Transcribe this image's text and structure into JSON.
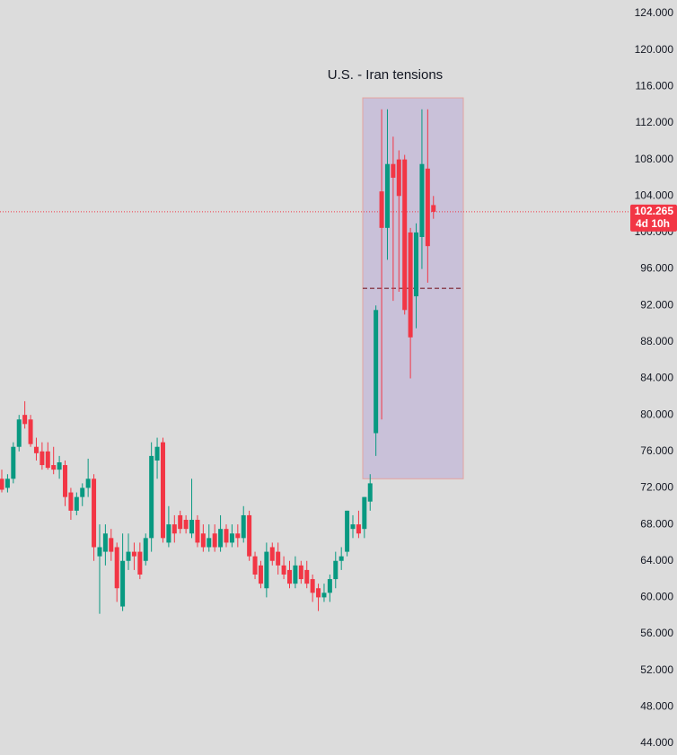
{
  "chart_data": {
    "type": "candlestick",
    "annotation": "U.S. - Iran tensions",
    "open": [
      73,
      72,
      73,
      76.5,
      80,
      79.5,
      76.5,
      76,
      76,
      74.5,
      74,
      74.5,
      71.5,
      69.5,
      71,
      72,
      73,
      64.5,
      65,
      66.5,
      65.5,
      59,
      64,
      65,
      65,
      64,
      66.5,
      75,
      77,
      66,
      68,
      69,
      68.5,
      67,
      68.5,
      67,
      65.5,
      67,
      65.5,
      67.5,
      66,
      67,
      66.5,
      69,
      64.5,
      63.5,
      61,
      65.5,
      65,
      63.5,
      63,
      61.5,
      63.5,
      63,
      62,
      61,
      60,
      60.5,
      62,
      64,
      65,
      67.5,
      68,
      67.5,
      70.5,
      78,
      104.5,
      100.5,
      107.5,
      108,
      108,
      100,
      93,
      99.5,
      107,
      103
    ],
    "high": [
      74,
      73.5,
      77,
      80,
      81.5,
      80,
      77.5,
      77,
      77,
      76.5,
      75.5,
      75,
      72,
      71.5,
      72.5,
      75.2,
      73.5,
      68,
      68,
      67.5,
      66,
      67,
      67,
      66,
      66,
      67,
      77,
      77.5,
      77.5,
      70,
      69,
      69.5,
      69,
      73,
      69,
      68,
      68,
      68,
      69,
      68,
      68,
      68,
      70,
      69.5,
      65,
      64,
      66,
      66,
      66,
      64.5,
      64,
      64.5,
      64,
      64,
      62.5,
      61.5,
      61.5,
      62.5,
      65,
      65.5,
      69.5,
      69,
      69.5,
      71,
      73.5,
      92,
      113.5,
      113.5,
      110.5,
      109,
      108.5,
      100.5,
      101,
      113.5,
      113.5,
      104
    ],
    "low": [
      71.5,
      71.5,
      72.5,
      76,
      78.5,
      76.5,
      75,
      74,
      74,
      73.5,
      73,
      70,
      68.5,
      69,
      70,
      71,
      64,
      58.2,
      63.5,
      64,
      59.5,
      58.5,
      63,
      63,
      62,
      63.5,
      65,
      73,
      66,
      65.5,
      66,
      67,
      67,
      66.5,
      65.5,
      65,
      65,
      65,
      65,
      65.5,
      65.5,
      65.5,
      66,
      64,
      62,
      61,
      60,
      63.5,
      62.5,
      62,
      61,
      61,
      61.5,
      61,
      59.5,
      58.5,
      59.5,
      59.5,
      61,
      63,
      64.5,
      66.5,
      66.5,
      66.5,
      69.5,
      75.5,
      79.5,
      97,
      92.5,
      93.5,
      91,
      84,
      89.5,
      96,
      94.5,
      101.5
    ],
    "close": [
      71.8,
      73,
      76.5,
      79.5,
      79,
      76.8,
      75.8,
      74.5,
      74.2,
      74,
      74.8,
      71,
      69.5,
      71,
      72,
      73,
      65.5,
      65.5,
      67,
      65,
      61,
      64,
      65,
      64.5,
      62.5,
      66.5,
      75.5,
      76.5,
      66.5,
      68,
      67,
      67.5,
      67.5,
      68.5,
      66,
      65.5,
      66.5,
      65.5,
      67.5,
      66,
      67,
      66.5,
      69,
      64.5,
      62.5,
      61.5,
      65,
      64,
      63.5,
      62.5,
      61.5,
      63.5,
      62,
      61.5,
      60.5,
      60,
      60.5,
      62,
      64,
      64.5,
      69.5,
      68,
      67,
      71,
      72.5,
      91.5,
      100.5,
      107.5,
      106,
      104,
      91.5,
      88.5,
      100,
      107.5,
      98.5,
      102.265
    ],
    "up_color": "#089981",
    "down_color": "#f23645",
    "highlight": {
      "high": 114.75,
      "low": 73,
      "mid": 93.875,
      "color": "#c6bcd8"
    },
    "last_price": 102.265,
    "countdown": "4d 10h",
    "ylim": [
      42.72,
      125.48
    ],
    "yticks": [
      {
        "value": 44,
        "label": "44.000"
      },
      {
        "value": 48,
        "label": "48.000"
      },
      {
        "value": 52,
        "label": "52.000"
      },
      {
        "value": 56,
        "label": "56.000"
      },
      {
        "value": 60,
        "label": "60.000"
      },
      {
        "value": 64,
        "label": "64.000"
      },
      {
        "value": 68,
        "label": "68.000"
      },
      {
        "value": 72,
        "label": "72.000"
      },
      {
        "value": 76,
        "label": "76.000"
      },
      {
        "value": 80,
        "label": "80.000"
      },
      {
        "value": 84,
        "label": "84.000"
      },
      {
        "value": 88,
        "label": "88.000"
      },
      {
        "value": 92,
        "label": "92.000"
      },
      {
        "value": 96,
        "label": "96.000"
      },
      {
        "value": 100,
        "label": "100.000"
      },
      {
        "value": 104,
        "label": "104.000"
      },
      {
        "value": 108,
        "label": "108.000"
      },
      {
        "value": 112,
        "label": "112.000"
      },
      {
        "value": 116,
        "label": "116.000"
      },
      {
        "value": 120,
        "label": "120.000"
      },
      {
        "value": 124,
        "label": "124.000"
      }
    ]
  }
}
